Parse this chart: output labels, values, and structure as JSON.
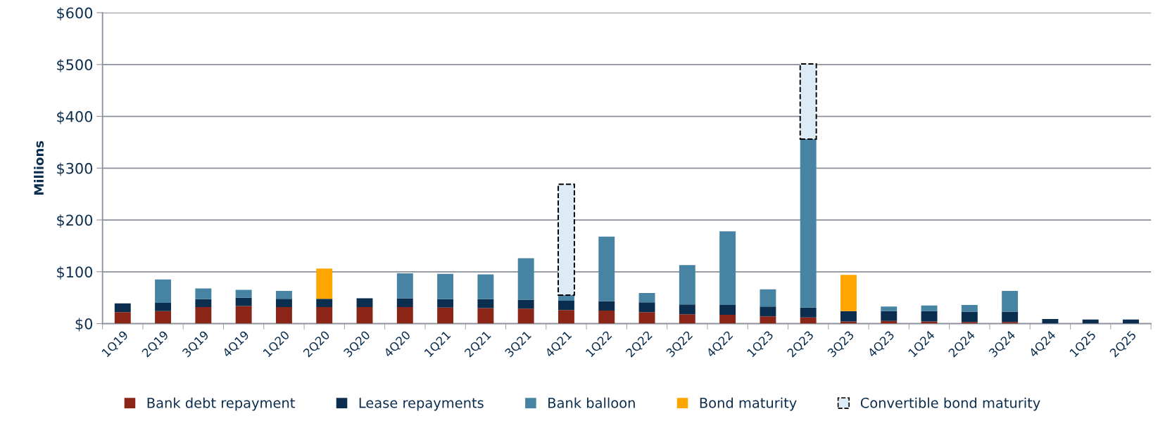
{
  "chart_data": {
    "type": "bar",
    "stacked": true,
    "ylabel": "Millions",
    "categories": [
      "1Q19",
      "2Q19",
      "3Q19",
      "4Q19",
      "1Q20",
      "2Q20",
      "3Q20",
      "4Q20",
      "1Q21",
      "2Q21",
      "3Q21",
      "4Q21",
      "1Q22",
      "2Q22",
      "3Q22",
      "4Q22",
      "1Q23",
      "2Q23",
      "3Q23",
      "4Q23",
      "1Q24",
      "2Q24",
      "3Q24",
      "4Q24",
      "1Q25",
      "2Q25"
    ],
    "series": [
      {
        "name": "Bank debt repayment",
        "color": "#8b2518",
        "values": [
          22,
          24,
          32,
          34,
          32,
          32,
          32,
          32,
          31,
          30,
          29,
          26,
          25,
          22,
          18,
          17,
          14,
          12,
          4,
          5,
          4,
          3,
          3,
          null,
          null,
          null
        ]
      },
      {
        "name": "Lease repayments",
        "color": "#0b2d4e",
        "values": [
          17,
          16,
          15,
          16,
          16,
          16,
          17,
          17,
          16,
          17,
          17,
          18,
          18,
          19,
          19,
          19,
          19,
          19,
          20,
          19,
          20,
          20,
          20,
          9,
          8,
          8
        ]
      },
      {
        "name": "Bank balloon",
        "color": "#4783a3",
        "values": [
          null,
          45,
          21,
          15,
          15,
          null,
          null,
          48,
          49,
          48,
          80,
          11,
          125,
          18,
          76,
          142,
          33,
          325,
          null,
          9,
          11,
          13,
          40,
          null,
          null,
          null
        ]
      },
      {
        "name": "Bond maturity",
        "color": "#ffa500",
        "values": [
          null,
          null,
          null,
          null,
          null,
          58,
          null,
          null,
          null,
          null,
          null,
          null,
          null,
          null,
          null,
          null,
          null,
          null,
          70,
          null,
          null,
          null,
          null,
          null,
          null,
          null
        ]
      },
      {
        "name": "Convertible bond maturity",
        "color": "#ddebf7",
        "line_style": "dashed",
        "values": [
          null,
          null,
          null,
          null,
          null,
          null,
          null,
          null,
          null,
          null,
          null,
          214,
          null,
          null,
          null,
          null,
          null,
          145,
          null,
          null,
          null,
          null,
          null,
          null,
          null,
          null
        ]
      }
    ],
    "ylim": [
      0,
      600
    ],
    "yticks": [
      {
        "value": 0,
        "label": "$0"
      },
      {
        "value": 100,
        "label": "$100"
      },
      {
        "value": 200,
        "label": "$200"
      },
      {
        "value": 300,
        "label": "$300"
      },
      {
        "value": 400,
        "label": "$400"
      },
      {
        "value": 500,
        "label": "$500"
      },
      {
        "value": 600,
        "label": "$600"
      }
    ],
    "grid": "y",
    "legend": "bottom"
  }
}
